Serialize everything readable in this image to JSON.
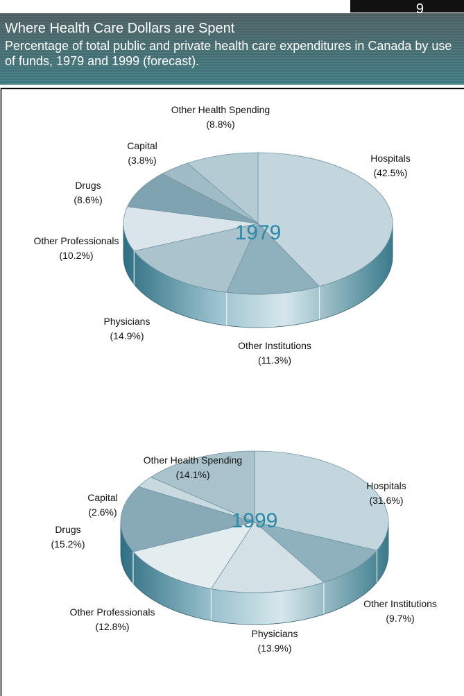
{
  "header": {
    "page_number": "9",
    "title": "Where Health Care Dollars are Spent",
    "subtitle": "Percentage of total public and private health care expenditures in Canada by use of funds, 1979 and 1999 (forecast)."
  },
  "chart_data": [
    {
      "type": "pie",
      "title": "1979",
      "categories": [
        "Hospitals",
        "Other Institutions",
        "Physicians",
        "Other Professionals",
        "Drugs",
        "Capital",
        "Other Health Spending"
      ],
      "values": [
        42.5,
        11.3,
        14.9,
        10.2,
        8.6,
        3.8,
        8.8
      ],
      "value_labels": [
        "(42.5%)",
        "(11.3%)",
        "(14.9%)",
        "(10.2%)",
        "(8.6%)",
        "(3.8%)",
        "(8.8%)"
      ],
      "colors": [
        "#c3d6de",
        "#8fb0bd",
        "#aac3cd",
        "#d9e5ea",
        "#7fa3b1",
        "#a0bcc7",
        "#b5cbd4"
      ]
    },
    {
      "type": "pie",
      "title": "1999",
      "categories": [
        "Hospitals",
        "Other Institutions",
        "Physicians",
        "Other Professionals",
        "Drugs",
        "Capital",
        "Other Health Spending"
      ],
      "values": [
        31.6,
        9.7,
        13.9,
        12.8,
        15.2,
        2.6,
        14.1
      ],
      "value_labels": [
        "(31.6%)",
        "(9.7%)",
        "(13.9%)",
        "(12.8%)",
        "(15.2%)",
        "(2.6%)",
        "(14.1%)"
      ],
      "colors": [
        "#c3d6de",
        "#8fb0bd",
        "#d3e1e6",
        "#e3ecef",
        "#88aab7",
        "#c8d9df",
        "#a9c2cc"
      ]
    }
  ]
}
